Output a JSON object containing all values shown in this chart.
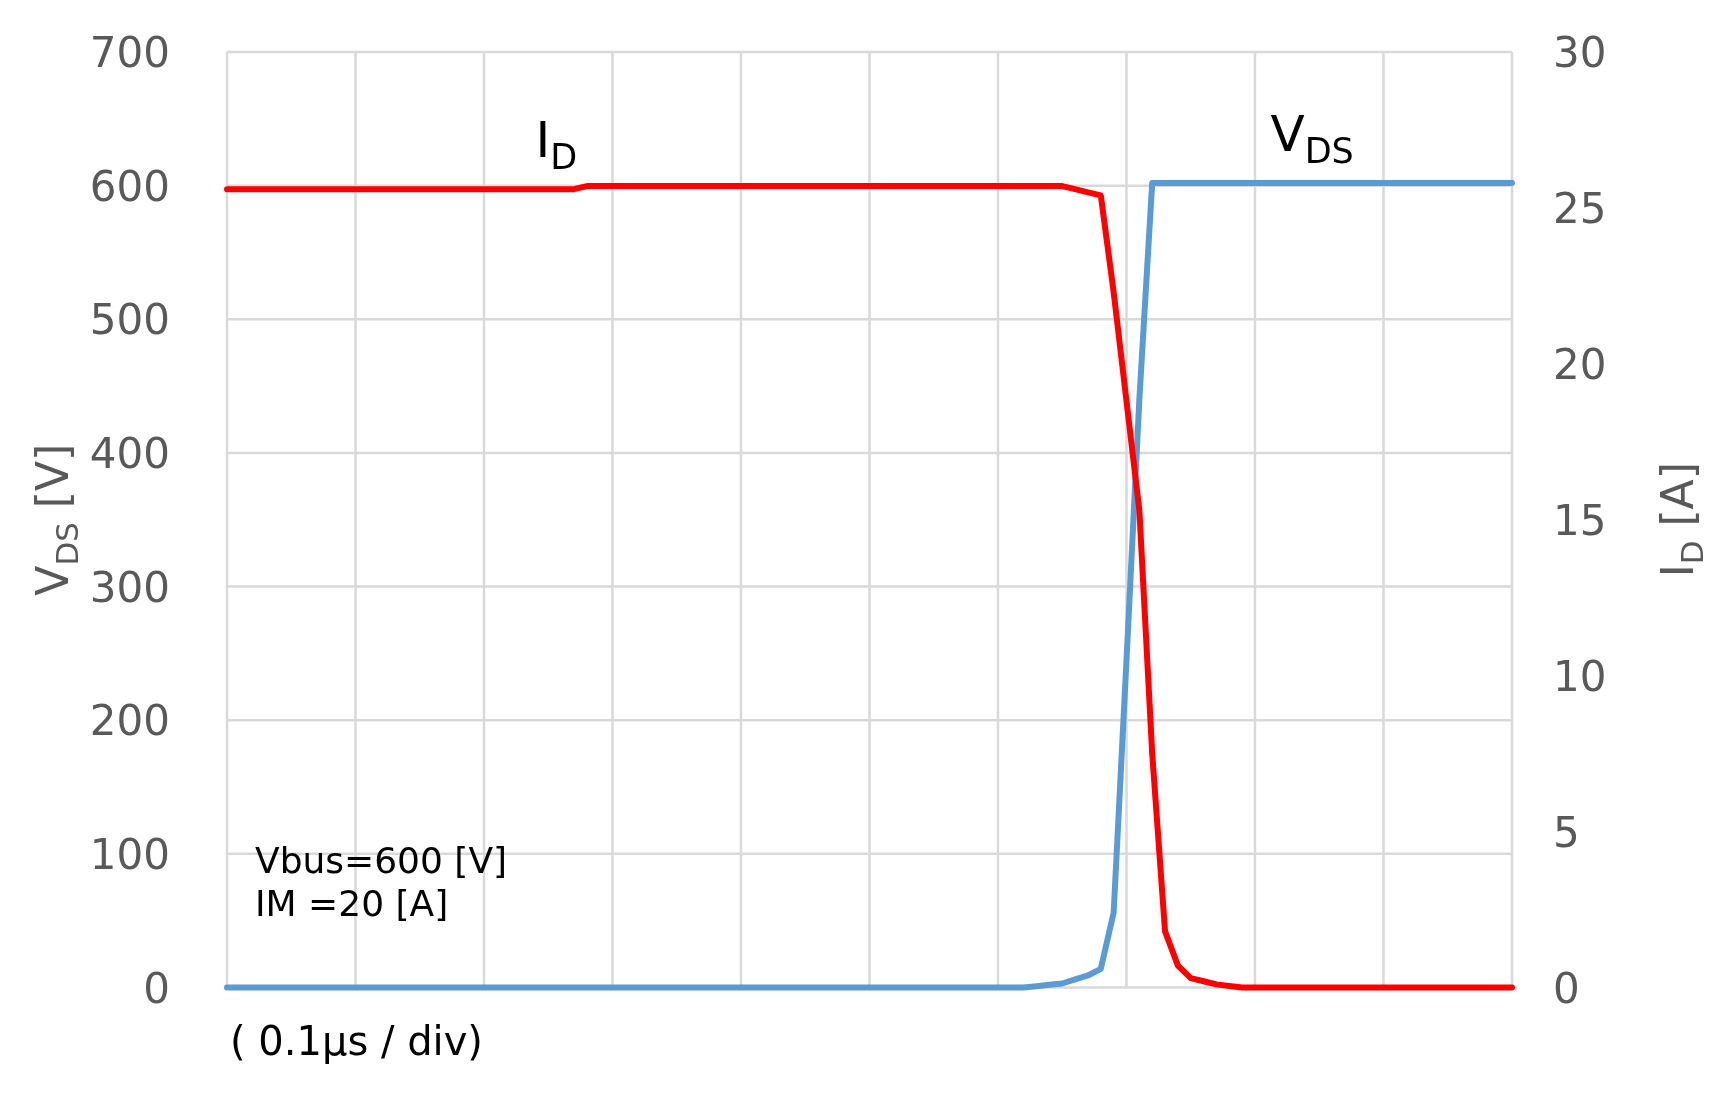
{
  "chart_data": {
    "type": "line",
    "xlabel": "( 0.1μs / div)",
    "ylabel": "V$_{DS}$ [V]",
    "y2label": "I$_{D}$ [A]",
    "annotations": [
      "Vbus=600 [V]",
      "IM =20 [A]"
    ],
    "categories": [
      null,
      null,
      null,
      null,
      null,
      null,
      null,
      null,
      null,
      null,
      null,
      null,
      null,
      null,
      null,
      null,
      null,
      null,
      null,
      null,
      null,
      null,
      null,
      null,
      null,
      null,
      null,
      null,
      null,
      null,
      null,
      null,
      null,
      null,
      null,
      null,
      null,
      null,
      null,
      null,
      null,
      null,
      null,
      null,
      null,
      null,
      null,
      null,
      null,
      null,
      null,
      null,
      null,
      null,
      null,
      null,
      null,
      null,
      null,
      null,
      null,
      null,
      null,
      null,
      null,
      null,
      null,
      null,
      null,
      null,
      null,
      null,
      null,
      null,
      null,
      null,
      null,
      null,
      null,
      null,
      null,
      null,
      null,
      null,
      null,
      null,
      null,
      null,
      null,
      null,
      null,
      null,
      null,
      null,
      null,
      null,
      null,
      null,
      null,
      null,
      null
    ],
    "ylim": [
      0,
      700
    ],
    "yticks": [
      0,
      100,
      200,
      300,
      400,
      500,
      600,
      700
    ],
    "y2lim": [
      0,
      30
    ],
    "y2ticks": [
      0,
      5,
      10,
      15,
      20,
      25,
      30
    ],
    "grid": true,
    "series": [
      {
        "name": "V$_{DS}$",
        "color": "#5b9bd5",
        "values": [
          0,
          0,
          0,
          0,
          0,
          0,
          0,
          0,
          0,
          0,
          0,
          0,
          0,
          0,
          0,
          0,
          0,
          0,
          0,
          0,
          0,
          0,
          0,
          0,
          0,
          0,
          0,
          0,
          0,
          0,
          0,
          0,
          0,
          0,
          0,
          0,
          0,
          0,
          0,
          0,
          0,
          0,
          0,
          0,
          0,
          0,
          0,
          0,
          0,
          0,
          0,
          0,
          0,
          0,
          0,
          0,
          0,
          0,
          0,
          0,
          0,
          0,
          0,
          1,
          2,
          3,
          6,
          9,
          14,
          56,
          245,
          440,
          602,
          602,
          602,
          602,
          602,
          602,
          602,
          602,
          602,
          602,
          602,
          602,
          602,
          602,
          602,
          602,
          602,
          602,
          602,
          602,
          602,
          602,
          602,
          602,
          602,
          602,
          602,
          602,
          602
        ]
      },
      {
        "name": "I$_{D}$",
        "color": "#ff0000",
        "axis": "y2",
        "values": [
          25.6,
          25.6,
          25.6,
          25.6,
          25.6,
          25.6,
          25.6,
          25.6,
          25.6,
          25.6,
          25.6,
          25.6,
          25.6,
          25.6,
          25.6,
          25.6,
          25.6,
          25.6,
          25.6,
          25.6,
          25.6,
          25.6,
          25.6,
          25.6,
          25.6,
          25.6,
          25.6,
          25.6,
          25.7,
          25.7,
          25.7,
          25.7,
          25.7,
          25.7,
          25.7,
          25.7,
          25.7,
          25.7,
          25.7,
          25.7,
          25.7,
          25.7,
          25.7,
          25.7,
          25.7,
          25.7,
          25.7,
          25.7,
          25.7,
          25.7,
          25.7,
          25.7,
          25.7,
          25.7,
          25.7,
          25.7,
          25.7,
          25.7,
          25.7,
          25.7,
          25.7,
          25.7,
          25.7,
          25.7,
          25.7,
          25.7,
          25.6,
          25.5,
          25.4,
          22.3,
          18.8,
          15.3,
          7.5,
          1.8,
          0.7,
          0.3,
          0.2,
          0.1,
          0.05,
          0,
          0,
          0,
          0,
          0,
          0,
          0,
          0,
          0,
          0,
          0,
          0,
          0,
          0,
          0,
          0,
          0,
          0,
          0,
          0,
          0,
          0
        ]
      }
    ]
  }
}
